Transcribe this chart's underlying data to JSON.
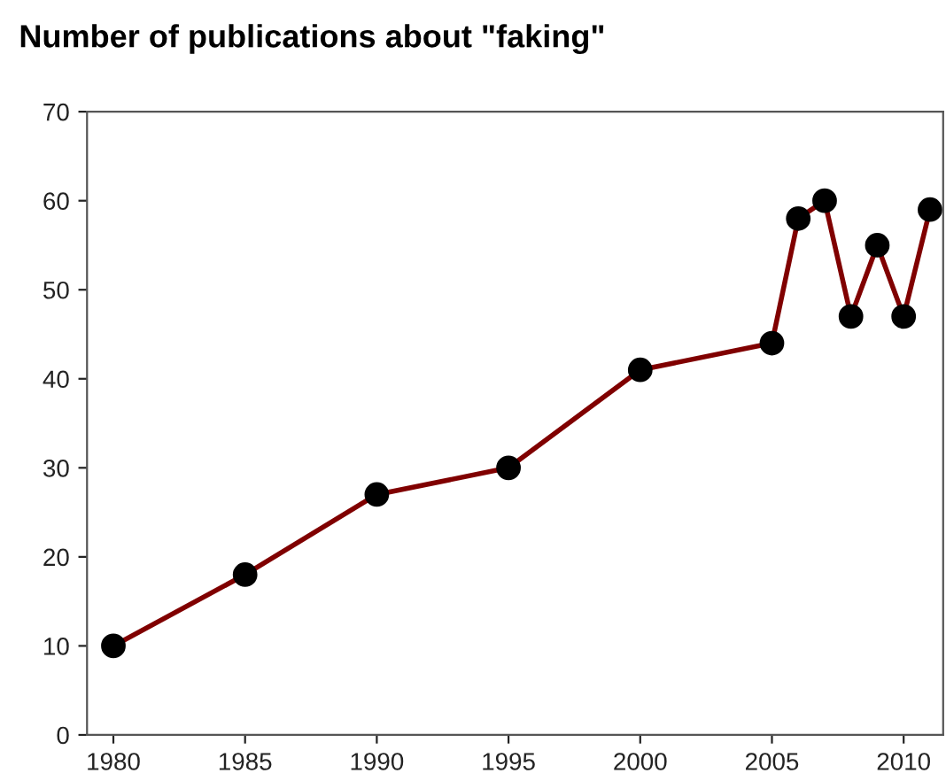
{
  "chart_data": {
    "type": "line",
    "title": "Number of publications about \"faking\"",
    "x": [
      1980,
      1985,
      1990,
      1995,
      2000,
      2005,
      2006,
      2007,
      2008,
      2009,
      2010,
      2011
    ],
    "series": [
      {
        "color": "#800000",
        "values": [
          10,
          18,
          27,
          30,
          41,
          44,
          58,
          60,
          47,
          55,
          47,
          59
        ]
      }
    ],
    "xlim": [
      1979,
      2011.5
    ],
    "xticks": [
      1980,
      1985,
      1990,
      1995,
      2000,
      2005,
      2010
    ],
    "ylim": [
      0,
      70
    ],
    "yticks": [
      0,
      10,
      20,
      30,
      40,
      50,
      60,
      70
    ],
    "marker": "circle",
    "line_style": "solid",
    "grid": false,
    "legend": false
  }
}
